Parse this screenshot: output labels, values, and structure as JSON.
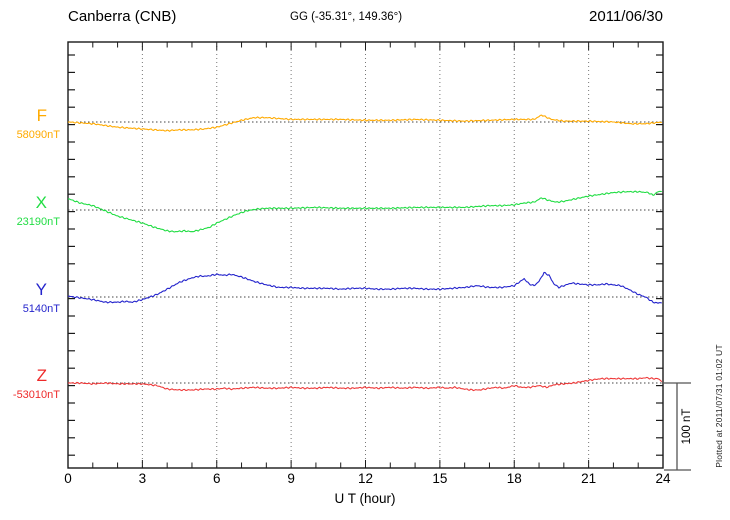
{
  "header": {
    "station": "Canberra (CNB)",
    "coords": "GG (-35.31°, 149.36°)",
    "date": "2011/06/30"
  },
  "footer": {
    "xlabel": "U T (hour)",
    "plotted_note": "Plotted at 2011/07/31 01:02 UT"
  },
  "scale_bar": {
    "label": "100 nT",
    "nT": 100
  },
  "axis": {
    "tick_labels": [
      "0",
      "3",
      "6",
      "9",
      "12",
      "15",
      "18",
      "21",
      "24"
    ],
    "major_step_hours": 3,
    "minor_step_hours": 1,
    "nT_per_minor_tick": 20
  },
  "colors": {
    "frame": "#1a1a1a",
    "gridline": "#777777",
    "baseline": "#444444",
    "scale_bar": "#555555"
  },
  "chart_data": {
    "type": "line",
    "title": "Canberra (CNB) magnetogram",
    "xlabel": "U T (hour)",
    "x_range": [
      0,
      24
    ],
    "grid": "dotted-every-3h",
    "scale_bar_nT": 100,
    "series": [
      {
        "component": "F",
        "baseline_label": "58090nT",
        "base_nT": 58090,
        "color": "#FFAA00",
        "points": [
          [
            0,
            0
          ],
          [
            0.5,
            -1
          ],
          [
            1,
            -2
          ],
          [
            1.5,
            -4
          ],
          [
            2,
            -6
          ],
          [
            2.5,
            -7
          ],
          [
            3,
            -8
          ],
          [
            3.5,
            -9
          ],
          [
            4,
            -10
          ],
          [
            4.5,
            -9
          ],
          [
            5,
            -9
          ],
          [
            5.5,
            -8
          ],
          [
            6,
            -6
          ],
          [
            6.5,
            -2
          ],
          [
            7,
            2
          ],
          [
            7.5,
            5
          ],
          [
            8,
            5
          ],
          [
            8.5,
            4
          ],
          [
            9,
            3
          ],
          [
            9.5,
            3
          ],
          [
            10,
            3
          ],
          [
            11,
            3
          ],
          [
            12,
            2
          ],
          [
            13,
            2
          ],
          [
            14,
            3
          ],
          [
            15,
            2
          ],
          [
            16,
            1
          ],
          [
            17,
            2
          ],
          [
            18,
            3
          ],
          [
            18.8,
            3
          ],
          [
            19.1,
            8
          ],
          [
            19.5,
            3
          ],
          [
            20,
            1
          ],
          [
            21,
            1
          ],
          [
            22,
            0
          ],
          [
            22.7,
            -2
          ],
          [
            23.3,
            -2
          ],
          [
            24,
            0
          ]
        ]
      },
      {
        "component": "X",
        "baseline_label": "23190nT",
        "base_nT": 23190,
        "color": "#22DD44",
        "points": [
          [
            0,
            13
          ],
          [
            0.5,
            8
          ],
          [
            1,
            5
          ],
          [
            1.5,
            -1
          ],
          [
            2,
            -7
          ],
          [
            2.5,
            -11
          ],
          [
            3,
            -15
          ],
          [
            3.5,
            -20
          ],
          [
            4,
            -24
          ],
          [
            4.3,
            -25
          ],
          [
            4.7,
            -24
          ],
          [
            5,
            -25
          ],
          [
            5.3,
            -23
          ],
          [
            5.7,
            -20
          ],
          [
            6,
            -15
          ],
          [
            6.4,
            -10
          ],
          [
            6.8,
            -5
          ],
          [
            7.2,
            -1
          ],
          [
            7.6,
            1
          ],
          [
            8,
            2
          ],
          [
            9,
            2
          ],
          [
            10,
            3
          ],
          [
            11,
            2
          ],
          [
            12,
            2
          ],
          [
            13,
            2
          ],
          [
            14,
            3
          ],
          [
            15,
            3
          ],
          [
            16,
            3
          ],
          [
            17,
            5
          ],
          [
            17.5,
            5
          ],
          [
            18,
            6
          ],
          [
            18.4,
            8
          ],
          [
            18.8,
            9
          ],
          [
            19.1,
            14
          ],
          [
            19.4,
            11
          ],
          [
            19.7,
            9
          ],
          [
            20,
            10
          ],
          [
            20.5,
            13
          ],
          [
            21,
            16
          ],
          [
            21.5,
            18
          ],
          [
            22,
            20
          ],
          [
            22.5,
            21
          ],
          [
            23,
            21
          ],
          [
            23.4,
            20
          ],
          [
            23.6,
            17
          ],
          [
            23.8,
            21
          ],
          [
            24,
            22
          ]
        ]
      },
      {
        "component": "Y",
        "baseline_label": "5140nT",
        "base_nT": 5140,
        "color": "#2525CC",
        "points": [
          [
            0,
            1
          ],
          [
            0.5,
            -1
          ],
          [
            1,
            -3
          ],
          [
            1.5,
            -6
          ],
          [
            2,
            -6
          ],
          [
            2.3,
            -5
          ],
          [
            2.6,
            -6
          ],
          [
            3,
            -3
          ],
          [
            3.3,
            0
          ],
          [
            3.6,
            3
          ],
          [
            4,
            9
          ],
          [
            4.5,
            17
          ],
          [
            5,
            22
          ],
          [
            5.3,
            24
          ],
          [
            5.6,
            24
          ],
          [
            6,
            26
          ],
          [
            6.3,
            25
          ],
          [
            6.6,
            26
          ],
          [
            7,
            23
          ],
          [
            7.5,
            18
          ],
          [
            8,
            14
          ],
          [
            8.5,
            11
          ],
          [
            9,
            11
          ],
          [
            9.5,
            10
          ],
          [
            10,
            10
          ],
          [
            10.5,
            10
          ],
          [
            11,
            9
          ],
          [
            11.5,
            10
          ],
          [
            12,
            10
          ],
          [
            12.5,
            9
          ],
          [
            13,
            9
          ],
          [
            13.5,
            10
          ],
          [
            14,
            10
          ],
          [
            14.5,
            9
          ],
          [
            15,
            9
          ],
          [
            15.5,
            10
          ],
          [
            16,
            11
          ],
          [
            16.5,
            13
          ],
          [
            17,
            11
          ],
          [
            17.5,
            11
          ],
          [
            18,
            13
          ],
          [
            18.2,
            17
          ],
          [
            18.4,
            21
          ],
          [
            18.6,
            15
          ],
          [
            18.8,
            13
          ],
          [
            19,
            18
          ],
          [
            19.2,
            28
          ],
          [
            19.4,
            25
          ],
          [
            19.6,
            15
          ],
          [
            19.8,
            11
          ],
          [
            20,
            13
          ],
          [
            20.3,
            16
          ],
          [
            20.6,
            15
          ],
          [
            21,
            14
          ],
          [
            21.4,
            14
          ],
          [
            21.7,
            15
          ],
          [
            22,
            14
          ],
          [
            22.3,
            13
          ],
          [
            22.6,
            9
          ],
          [
            23,
            3
          ],
          [
            23.3,
            0
          ],
          [
            23.6,
            -6
          ],
          [
            23.8,
            -7
          ],
          [
            24,
            -6
          ]
        ]
      },
      {
        "component": "Z",
        "baseline_label": "-53010nT",
        "base_nT": -53010,
        "color": "#EE3A3A",
        "points": [
          [
            0,
            0
          ],
          [
            0.5,
            0
          ],
          [
            1,
            -1
          ],
          [
            1.5,
            0
          ],
          [
            2,
            -1
          ],
          [
            2.5,
            -1
          ],
          [
            3,
            -1
          ],
          [
            3.3,
            -2
          ],
          [
            3.6,
            -3
          ],
          [
            4,
            -7
          ],
          [
            4.5,
            -8
          ],
          [
            5,
            -8
          ],
          [
            5.5,
            -7
          ],
          [
            6,
            -7
          ],
          [
            6.3,
            -6
          ],
          [
            6.6,
            -7
          ],
          [
            7,
            -6
          ],
          [
            7.5,
            -5
          ],
          [
            8,
            -6
          ],
          [
            8.5,
            -6
          ],
          [
            9,
            -5
          ],
          [
            9.5,
            -6
          ],
          [
            10,
            -6
          ],
          [
            10.5,
            -5
          ],
          [
            11,
            -6
          ],
          [
            11.5,
            -6
          ],
          [
            12,
            -5
          ],
          [
            12.5,
            -6
          ],
          [
            13,
            -5
          ],
          [
            13.5,
            -6
          ],
          [
            14,
            -5
          ],
          [
            14.5,
            -6
          ],
          [
            15,
            -5
          ],
          [
            15.3,
            -6
          ],
          [
            15.6,
            -5
          ],
          [
            16,
            -7
          ],
          [
            16.3,
            -8
          ],
          [
            16.6,
            -8
          ],
          [
            17,
            -6
          ],
          [
            17.3,
            -5
          ],
          [
            17.6,
            -6
          ],
          [
            18,
            -3
          ],
          [
            18.3,
            -5
          ],
          [
            18.6,
            -5
          ],
          [
            19,
            -3
          ],
          [
            19.3,
            -5
          ],
          [
            19.6,
            -2
          ],
          [
            20,
            -1
          ],
          [
            20.4,
            0
          ],
          [
            20.8,
            2
          ],
          [
            21,
            3
          ],
          [
            21.5,
            5
          ],
          [
            22,
            5
          ],
          [
            22.5,
            5
          ],
          [
            23,
            5
          ],
          [
            23.3,
            6
          ],
          [
            23.6,
            5
          ],
          [
            23.8,
            5
          ],
          [
            24,
            1
          ]
        ]
      }
    ]
  }
}
